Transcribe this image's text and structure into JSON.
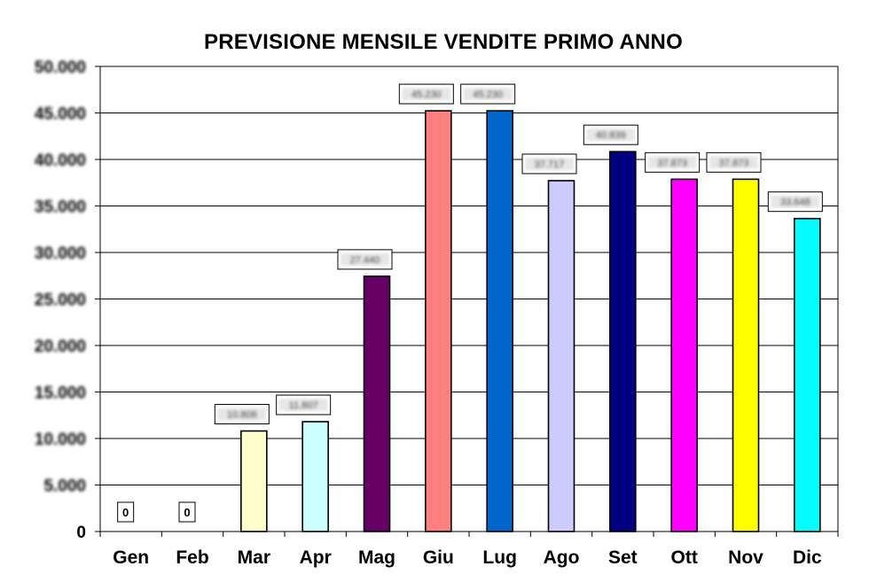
{
  "chart_data": {
    "type": "bar",
    "title": "PREVISIONE MENSILE VENDITE PRIMO ANNO",
    "xlabel": "",
    "ylabel": "",
    "ylim": [
      0,
      50000
    ],
    "yticks": [
      "0",
      "5.000",
      "10.000",
      "15.000",
      "20.000",
      "25.000",
      "30.000",
      "35.000",
      "40.000",
      "45.000",
      "50.000"
    ],
    "grid": true,
    "legend": "none",
    "categories": [
      "Gen",
      "Feb",
      "Mar",
      "Apr",
      "Mag",
      "Giu",
      "Lug",
      "Ago",
      "Set",
      "Ott",
      "Nov",
      "Dic"
    ],
    "values": [
      0,
      0,
      10808,
      11807,
      27440,
      45230,
      45230,
      37717,
      40839,
      37873,
      37873,
      33648
    ],
    "data_labels": [
      "0",
      "0",
      "10.808",
      "11.807",
      "27.440",
      "45.230",
      "45.230",
      "37.717",
      "40.839",
      "37.873",
      "37.873",
      "33.648"
    ],
    "colors": [
      "#ffffff",
      "#ffffff",
      "#ffffcc",
      "#ccffff",
      "#660066",
      "#ff8080",
      "#0066cc",
      "#ccccff",
      "#000080",
      "#ff00ff",
      "#ffff00",
      "#00ffff"
    ]
  }
}
